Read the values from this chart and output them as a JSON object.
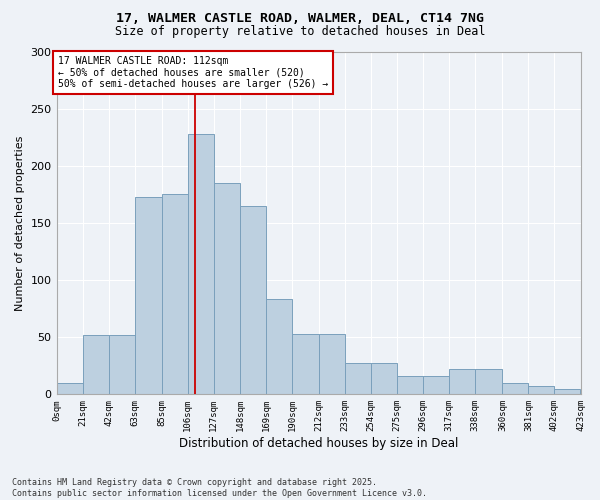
{
  "title_line1": "17, WALMER CASTLE ROAD, WALMER, DEAL, CT14 7NG",
  "title_line2": "Size of property relative to detached houses in Deal",
  "xlabel": "Distribution of detached houses by size in Deal",
  "ylabel": "Number of detached properties",
  "annotation_line1": "17 WALMER CASTLE ROAD: 112sqm",
  "annotation_line2": "← 50% of detached houses are smaller (520)",
  "annotation_line3": "50% of semi-detached houses are larger (526) →",
  "property_size": 112,
  "bin_edges": [
    0,
    21,
    42,
    63,
    85,
    106,
    127,
    148,
    169,
    190,
    212,
    233,
    254,
    275,
    296,
    317,
    338,
    360,
    381,
    402,
    423
  ],
  "bar_heights": [
    10,
    52,
    52,
    173,
    175,
    228,
    185,
    165,
    83,
    53,
    53,
    27,
    27,
    16,
    16,
    22,
    22,
    10,
    7,
    5
  ],
  "bar_color": "#bdd0e0",
  "bar_edge_color": "#7aa0bc",
  "vline_x": 112,
  "vline_color": "#cc0000",
  "annotation_box_edge_color": "#cc0000",
  "background_color": "#eef2f7",
  "grid_color": "#ffffff",
  "ylim": [
    0,
    300
  ],
  "yticks": [
    0,
    50,
    100,
    150,
    200,
    250,
    300
  ],
  "footer_line1": "Contains HM Land Registry data © Crown copyright and database right 2025.",
  "footer_line2": "Contains public sector information licensed under the Open Government Licence v3.0."
}
